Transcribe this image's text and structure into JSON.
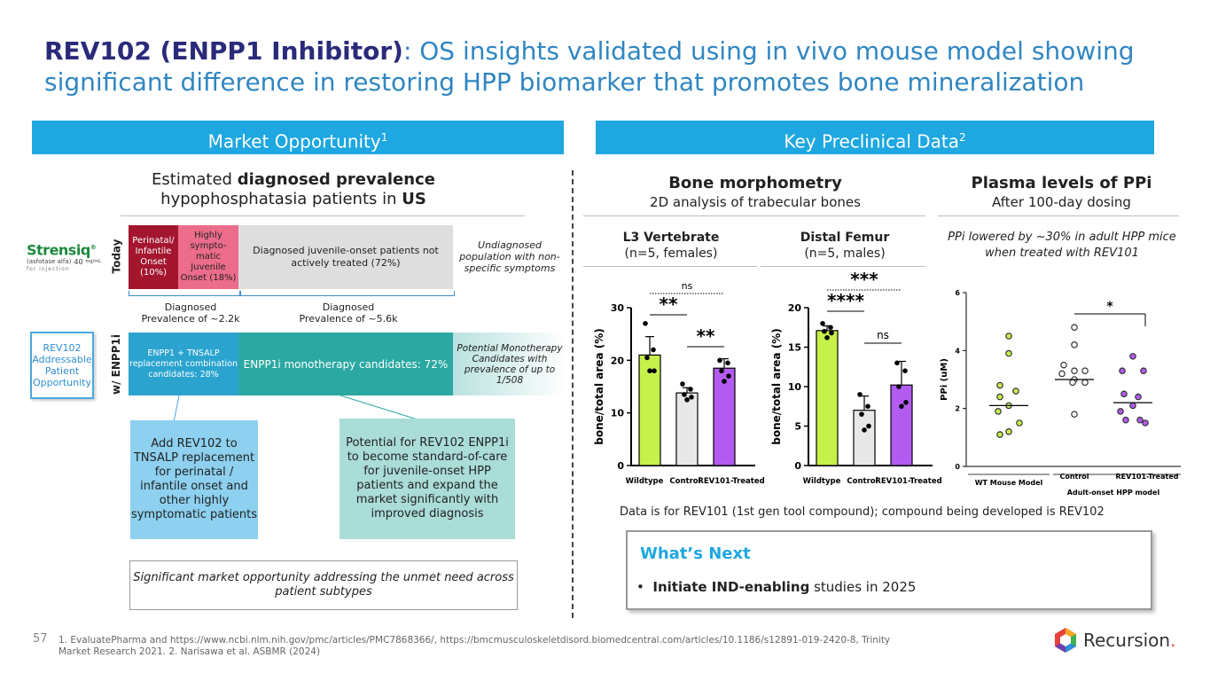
{
  "header": {
    "title_bold": "REV102 (ENPP1 Inhibitor)",
    "title_rest": ": OS insights validated using in vivo mouse model showing significant difference in restoring HPP biomarker that promotes bone mineralization"
  },
  "bands": {
    "left": "Market Opportunity",
    "left_sup": "1",
    "right": "Key Preclinical Data",
    "right_sup": "2"
  },
  "market": {
    "heading_pre": "Estimated ",
    "heading_bold": "diagnosed prevalence",
    "heading_line2_pre": "hypophosphatasia patients in ",
    "heading_line2_bold": "US",
    "strensiq": {
      "brand": "Strensiq",
      "tm": "®",
      "sub": "(asfotase alfa)",
      "sub2": "for injection",
      "dose": "40",
      "dose_unit": "mg/mL"
    },
    "today_label": "Today",
    "with_label": "w/ ENPP1i",
    "seg_perinatal": "Perinatal/ Infantile Onset (10%)",
    "seg_symptomatic": "Highly sympto- matic Juvenile Onset (18%)",
    "seg_untreated": "Diagnosed juvenile-onset patients not actively treated (72%)",
    "undiagnosed": "Undiagnosed population with non-specific symptoms",
    "prev1_line1": "Diagnosed",
    "prev1_line2": "Prevalence of ~2.2k",
    "prev2_line1": "Diagnosed",
    "prev2_line2": "Prevalence of ~5.6k",
    "addressable": "REV102 Addressable Patient Opportunity",
    "seg_combo": "ENPP1 + TNSALP replacement combination candidates: 28%",
    "seg_mono": "ENPP1i monotherapy candidates: 72%",
    "seg_potential": "Potential Monotherapy Candidates with prevalence of up to 1/508",
    "callout1": "Add REV102 to TNSALP replacement for perinatal / infantile onset and other highly symptomatic patients",
    "callout2": "Potential for REV102 ENPP1i to become standard-of-care for juvenile-onset HPP patients and expand the market significantly with improved diagnosis",
    "summary": "Significant market opportunity addressing the unmet need across patient subtypes"
  },
  "preclinical": {
    "morph_title": "Bone morphometry",
    "morph_sub": "2D analysis of trabecular bones",
    "ppi_title": "Plasma levels of PPi",
    "ppi_sub": "After 100-day dosing",
    "l3_title": "L3 Vertebrate",
    "l3_sub": "(n=5, females)",
    "femur_title": "Distal Femur",
    "femur_sub": "(n=5, males)",
    "ppi_note": "PPi lowered by ~30% in adult HPP mice when treated with REV101",
    "data_note": "Data is for REV101 (1st gen tool compound); compound being developed is REV102",
    "next_title": "What’s Next",
    "next_bullet": "•",
    "next_bold": "Initiate IND-enabling",
    "next_rest": " studies in 2025"
  },
  "chart_data": [
    {
      "type": "bar",
      "title": "L3 Vertebrate",
      "ylabel": "bone/total area (%)",
      "categories": [
        "Wildtype",
        "Control",
        "REV101-Treated"
      ],
      "values": [
        21,
        13.8,
        18.5
      ],
      "errors": [
        3.5,
        1.0,
        1.8
      ],
      "points": [
        [
          27,
          22,
          20.5,
          18,
          18
        ],
        [
          15.5,
          14.5,
          13.5,
          13,
          12.5
        ],
        [
          20,
          19.5,
          18,
          17,
          16
        ]
      ],
      "yticks": [
        "0",
        "10",
        "20",
        "30"
      ],
      "ylim": [
        0,
        30
      ],
      "colors": [
        "#c6f04a",
        "#e8e8e8",
        "#b35bf0"
      ],
      "annotations": [
        "ns",
        "**",
        "**"
      ]
    },
    {
      "type": "bar",
      "title": "Distal Femur",
      "ylabel": "bone/total area (%)",
      "categories": [
        "Wildtype",
        "Control",
        "REV101-Treated"
      ],
      "values": [
        17.1,
        7,
        10.2
      ],
      "errors": [
        0.6,
        1.8,
        3
      ],
      "points": [
        [
          18,
          17.5,
          17,
          16.8,
          16.2
        ],
        [
          9,
          7.5,
          6.5,
          5,
          4.5
        ],
        [
          13,
          12,
          10,
          8,
          7.5
        ]
      ],
      "yticks": [
        "0",
        "5",
        "10",
        "15",
        "20"
      ],
      "ylim": [
        0,
        20
      ],
      "colors": [
        "#c6f04a",
        "#e8e8e8",
        "#b35bf0"
      ],
      "annotations": [
        "***",
        "****",
        "ns"
      ]
    },
    {
      "type": "scatter",
      "title": "",
      "ylabel": "PPi (uM)",
      "categories": [
        "WT Mouse Model",
        "Control",
        "REV101-Treated"
      ],
      "group_label": "Adult-onset HPP model",
      "medians": [
        2.1,
        3.0,
        2.2
      ],
      "points": [
        [
          4.5,
          3.9,
          2.8,
          2.6,
          2.4,
          2.1,
          1.9,
          1.5,
          1.2,
          1.1
        ],
        [
          4.8,
          4.2,
          3.5,
          3.3,
          3.3,
          3.2,
          3.0,
          2.9,
          2.9,
          1.8
        ],
        [
          3.8,
          3.3,
          3.3,
          2.5,
          2.4,
          2.1,
          1.9,
          1.6,
          1.6,
          1.5
        ]
      ],
      "yticks": [
        "0",
        "2",
        "4",
        "6"
      ],
      "ylim": [
        0,
        6
      ],
      "colors": [
        "#c6f04a",
        "#ffffff",
        "#b35bf0"
      ],
      "annotations": [
        "*"
      ]
    }
  ],
  "footer": {
    "page_number": "57",
    "refs_line1": "1. EvaluatePharma and https://www.ncbi.nlm.nih.gov/pmc/articles/PMC7868366/, https://bmcmusculoskeletdisord.biomedcentral.com/articles/10.1186/s12891-019-2420-8, Trinity",
    "refs_line2": "Market Research 2021.   2. Narisawa et al. ASBMR (2024)",
    "brand": "Recursion",
    "brand_mark": "."
  }
}
